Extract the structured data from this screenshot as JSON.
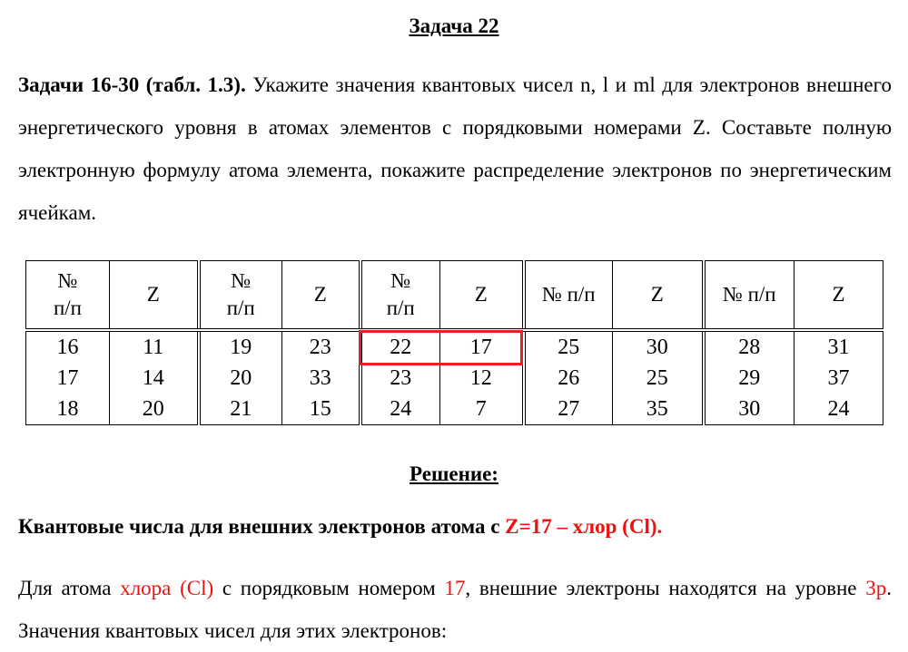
{
  "title": "Задача 22",
  "task": {
    "bold_lead": "Задачи 16-30 (табл. 1.3).",
    "text": " Укажите значения квантовых чисел n, l и ml для электронов внешнего энергетического уровня в атомах элементов с порядковыми номерами Z. Составьте полную электронную формулу атома элемента, покажите распределение электронов по энергетическим ячейкам."
  },
  "table": {
    "headers": [
      "№ п/п",
      "Z",
      "№ п/п",
      "Z",
      "№ п/п",
      "Z",
      "№ п/п",
      "Z",
      "№ п/п",
      "Z"
    ],
    "columns": [
      [
        "16",
        "17",
        "18"
      ],
      [
        "11",
        "14",
        "20"
      ],
      [
        "19",
        "20",
        "21"
      ],
      [
        "23",
        "33",
        "15"
      ],
      [
        "22",
        "23",
        "24"
      ],
      [
        "17",
        "12",
        "7"
      ],
      [
        "25",
        "26",
        "27"
      ],
      [
        "30",
        "25",
        "35"
      ],
      [
        "28",
        "29",
        "30"
      ],
      [
        "31",
        "37",
        "24"
      ]
    ],
    "highlight": {
      "row": "22",
      "z": "17",
      "color": "#e32322"
    }
  },
  "solution": {
    "heading": "Решение:",
    "subheading_black": "Квантовые числа для внешних электронов атома с ",
    "subheading_red": "Z=17 – хлор (Cl).",
    "p_a": "Для атома ",
    "p_b": "хлора (Cl)",
    "p_c": " с порядковым номером ",
    "p_d": "17",
    "p_e": ", внешние электроны находятся на уровне ",
    "p_f": "3p",
    "p_g": ". Значения квантовых чисел для этих электронов:"
  },
  "colors": {
    "accent_red": "#f01010"
  }
}
